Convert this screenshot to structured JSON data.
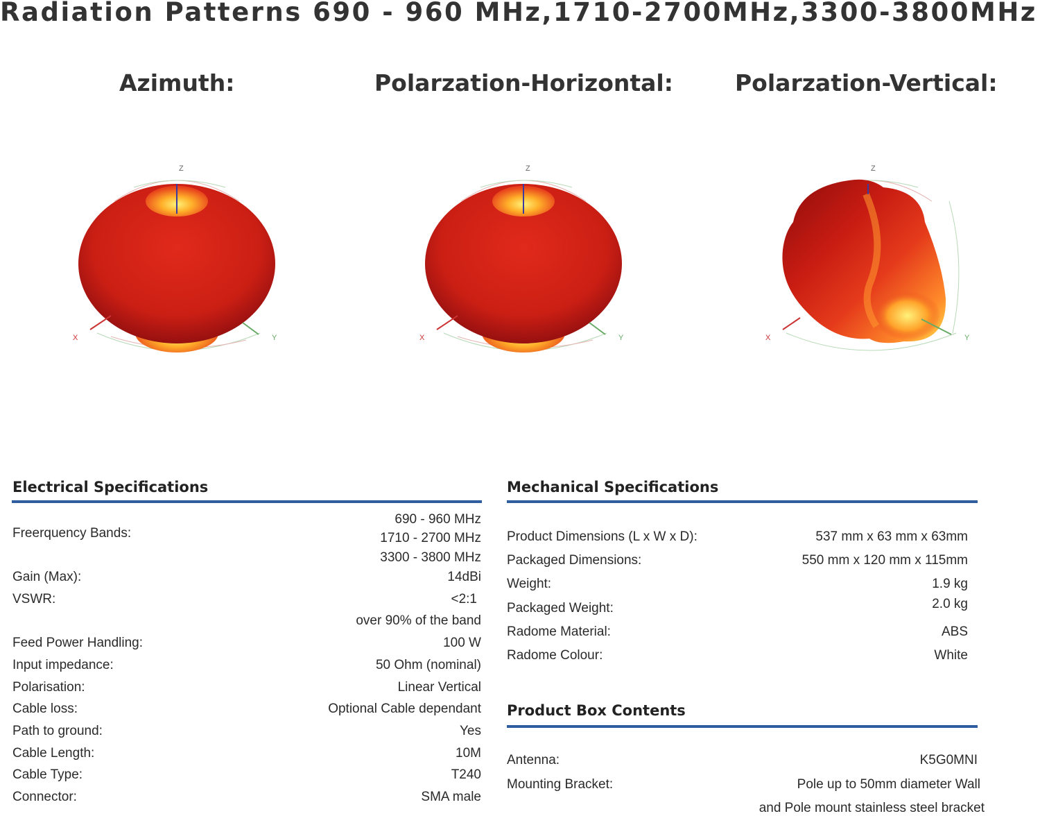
{
  "title": "Radiation Patterns  690 - 960 MHz,1710-2700MHz,3300-3800MHz",
  "patterns": [
    {
      "heading": "Azimuth:",
      "axes": {
        "z": "Z",
        "x": "X",
        "y": "Y"
      }
    },
    {
      "heading": "Polarzation-Horizontal:",
      "axes": {
        "z": "Z",
        "x": "X",
        "y": "Y"
      }
    },
    {
      "heading": "Polarzation-Vertical:",
      "axes": {
        "z": "Z",
        "x": "X",
        "y": "Y"
      }
    }
  ],
  "electrical": {
    "title": "Electrical Specifications",
    "rows": [
      {
        "label": "Freerquency Bands:",
        "values": [
          "690 - 960 MHz",
          "1710 - 2700 MHz",
          "3300 - 3800 MHz"
        ]
      },
      {
        "label": "Gain (Max):",
        "values": [
          "14dBi"
        ]
      },
      {
        "label": "VSWR:",
        "values": [
          "<2:1",
          "over 90% of the band"
        ]
      },
      {
        "label": "Feed Power Handling:",
        "values": [
          "100 W"
        ]
      },
      {
        "label": "Input impedance:",
        "values": [
          "50 Ohm (nominal)"
        ]
      },
      {
        "label": "Polarisation:",
        "values": [
          "Linear Vertical"
        ]
      },
      {
        "label": "Cable loss:",
        "values": [
          "Optional Cable dependant"
        ]
      },
      {
        "label": "Path to ground:",
        "values": [
          "Yes"
        ]
      },
      {
        "label": "Cable Length:",
        "values": [
          "10M"
        ]
      },
      {
        "label": "Cable Type:",
        "values": [
          "T240"
        ]
      },
      {
        "label": "Connector:",
        "values": [
          "SMA male"
        ]
      }
    ]
  },
  "mechanical": {
    "title": "Mechanical Specifications",
    "rows": [
      {
        "label": "Product Dimensions (L x W x D):",
        "values": [
          "537 mm x 63 mm x 63mm"
        ]
      },
      {
        "label": "Packaged Dimensions:",
        "values": [
          "550 mm x 120 mm x  115mm"
        ]
      },
      {
        "label": "Weight:",
        "values": [
          "1.9 kg"
        ]
      },
      {
        "label": "Packaged Weight:",
        "values": [
          "2.0 kg"
        ]
      },
      {
        "label": "Radome Material:",
        "values": [
          "ABS"
        ]
      },
      {
        "label": "Radome Colour:",
        "values": [
          "White"
        ]
      }
    ]
  },
  "box_contents": {
    "title": "Product Box Contents",
    "rows": [
      {
        "label": "Antenna:",
        "values": [
          "K5G0MNI"
        ]
      },
      {
        "label": "Mounting Bracket:",
        "values": [
          "Pole up to 50mm diameter Wall",
          "and Pole mount stainless steel bracket"
        ]
      }
    ]
  },
  "colors": {
    "accent_rule": "#2e5da0",
    "lobe_dark": "#a30f0f",
    "lobe_main": "#d8261a",
    "lobe_hot": "#ffe04a"
  }
}
